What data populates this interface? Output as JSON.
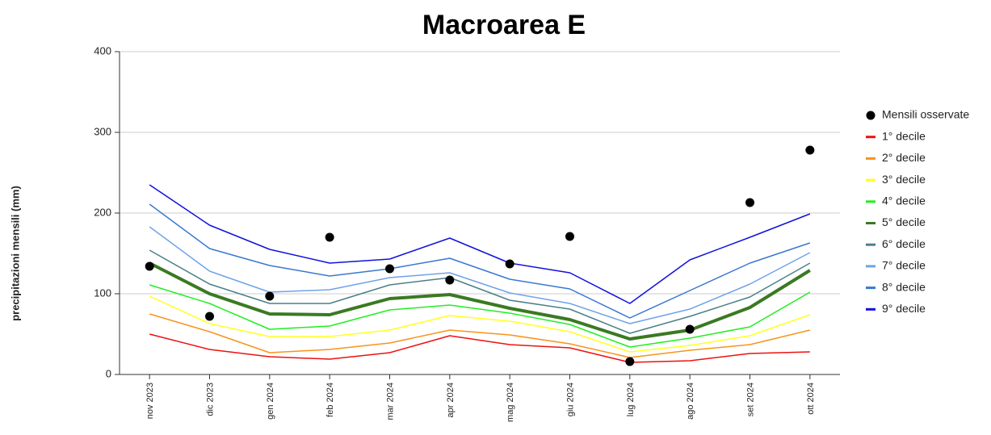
{
  "chart_data": {
    "type": "line",
    "title": "Macroarea E",
    "y_label": "precipitazioni mensili (mm)",
    "categories": [
      "nov 2023",
      "dic 2023",
      "gen 2024",
      "feb 2024",
      "mar 2024",
      "apr 2024",
      "mag 2024",
      "giu 2024",
      "lug 2024",
      "ago 2024",
      "set 2024",
      "ott 2024"
    ],
    "ylim": [
      0,
      400
    ],
    "yticks": [
      0,
      100,
      200,
      300,
      400
    ],
    "grid": true,
    "legend": "right",
    "series": [
      {
        "name": "Mensili osservate",
        "color": "#000000",
        "mode": "markers",
        "values": [
          134,
          72,
          97,
          170,
          131,
          117,
          137,
          171,
          16,
          56,
          213,
          278
        ]
      },
      {
        "name": "1° decile",
        "color": "#ee1111",
        "mode": "lines",
        "width": 1.5,
        "values": [
          50,
          31,
          22,
          19,
          27,
          48,
          37,
          33,
          15,
          17,
          26,
          28
        ]
      },
      {
        "name": "2° decile",
        "color": "#f7941d",
        "mode": "lines",
        "width": 1.5,
        "values": [
          75,
          53,
          27,
          31,
          39,
          55,
          49,
          38,
          21,
          30,
          37,
          55
        ]
      },
      {
        "name": "3° decile",
        "color": "#ffff22",
        "mode": "lines",
        "width": 1.5,
        "values": [
          97,
          63,
          47,
          47,
          55,
          73,
          66,
          53,
          28,
          36,
          48,
          74
        ]
      },
      {
        "name": "4° decile",
        "color": "#22ee22",
        "mode": "lines",
        "width": 1.5,
        "values": [
          111,
          88,
          56,
          60,
          80,
          86,
          76,
          62,
          34,
          45,
          59,
          102
        ]
      },
      {
        "name": "5° decile",
        "color": "#3a7a22",
        "mode": "lines",
        "width": 4,
        "values": [
          138,
          100,
          75,
          74,
          94,
          99,
          82,
          68,
          44,
          55,
          83,
          129
        ]
      },
      {
        "name": "6° decile",
        "color": "#4a8088",
        "mode": "lines",
        "width": 1.5,
        "values": [
          154,
          112,
          88,
          88,
          111,
          120,
          92,
          81,
          51,
          72,
          96,
          138
        ]
      },
      {
        "name": "7° decile",
        "color": "#6fa3e8",
        "mode": "lines",
        "width": 1.5,
        "values": [
          183,
          128,
          102,
          105,
          120,
          126,
          101,
          88,
          63,
          81,
          112,
          151
        ]
      },
      {
        "name": "8° decile",
        "color": "#3a78cf",
        "mode": "lines",
        "width": 1.5,
        "values": [
          211,
          156,
          135,
          122,
          131,
          144,
          118,
          106,
          70,
          104,
          138,
          163
        ]
      },
      {
        "name": "9° decile",
        "color": "#1111dd",
        "mode": "lines",
        "width": 1.5,
        "values": [
          235,
          185,
          155,
          138,
          143,
          169,
          138,
          126,
          88,
          142,
          170,
          199
        ]
      }
    ]
  }
}
